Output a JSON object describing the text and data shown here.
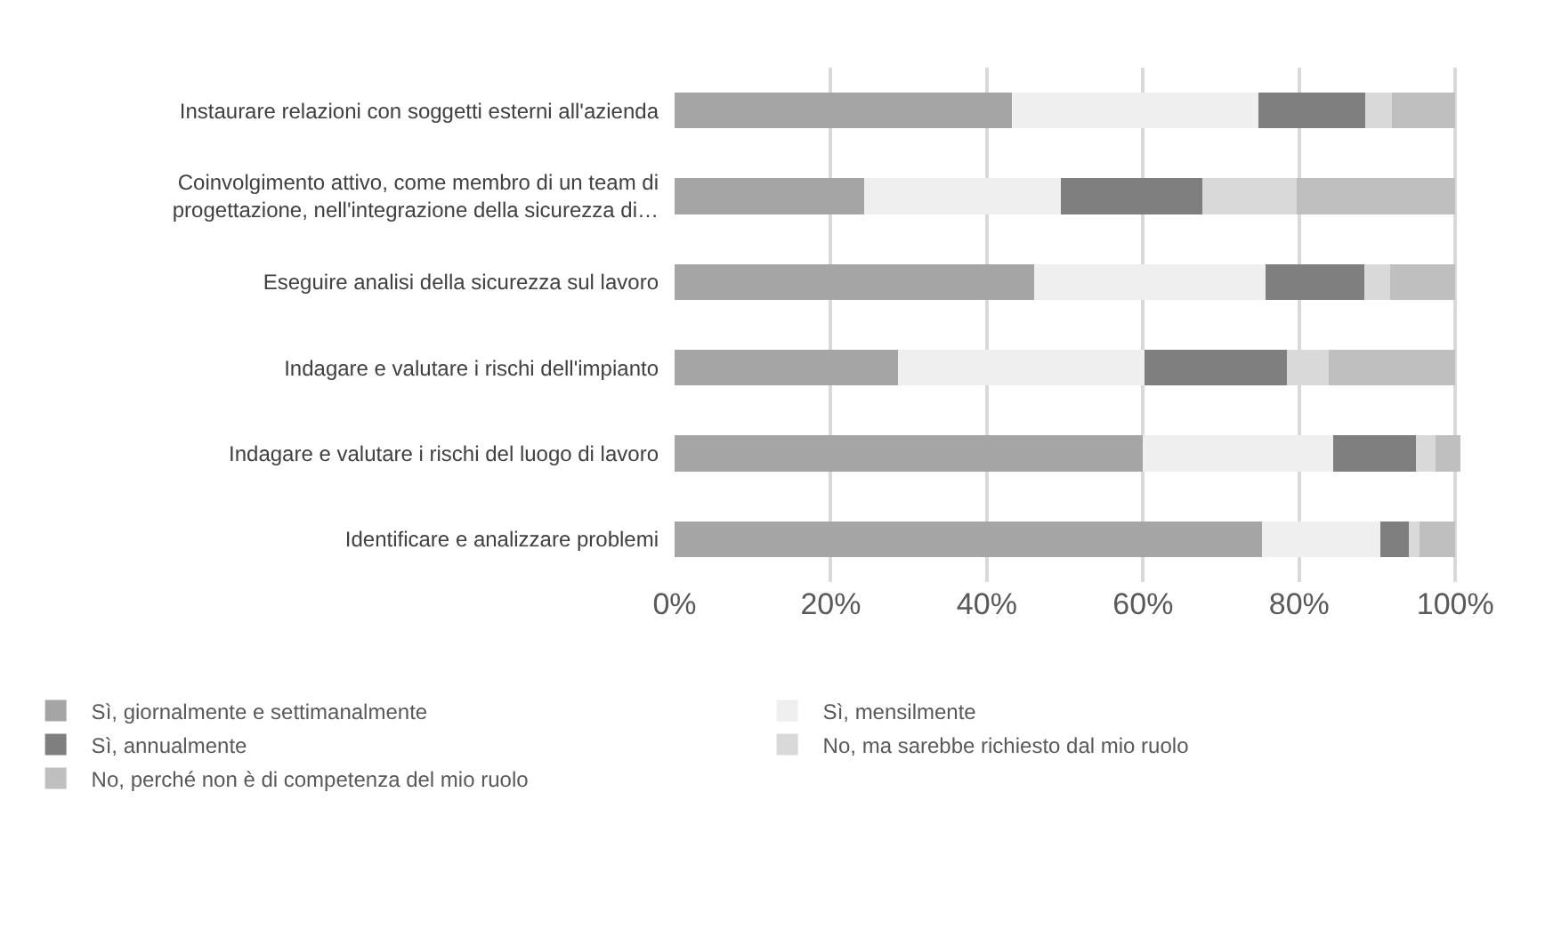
{
  "chart_data": {
    "type": "bar",
    "orientation": "horizontal",
    "stacked": true,
    "categories": [
      "Instaurare relazioni con soggetti esterni all'azienda",
      "Coinvolgimento attivo, come membro di un team di progettazione, nell'integrazione della sicurezza di…",
      "Eseguire analisi della sicurezza sul lavoro",
      "Indagare e valutare i rischi dell'impianto",
      "Indagare e valutare i rischi del luogo di lavoro",
      "Identificare e analizzare problemi"
    ],
    "series": [
      {
        "name": "Sì, giornalmente e settimanalmente",
        "color": "#a5a5a5",
        "values": [
          43.2,
          24.3,
          46.0,
          28.6,
          60.0,
          75.2
        ]
      },
      {
        "name": "Sì, mensilmente",
        "color": "#efefef",
        "values": [
          31.6,
          25.2,
          29.7,
          31.6,
          24.4,
          15.2
        ]
      },
      {
        "name": "Sì, annualmente",
        "color": "#7f7f7f",
        "values": [
          13.7,
          18.1,
          12.6,
          18.2,
          10.6,
          3.7
        ]
      },
      {
        "name": "No, ma sarebbe richiesto dal mio ruolo",
        "color": "#d9d9d9",
        "values": [
          3.4,
          12.1,
          3.3,
          5.4,
          2.5,
          1.3
        ]
      },
      {
        "name": "No, perché non è di competenza del mio ruolo",
        "color": "#bfbfbf",
        "values": [
          8.1,
          20.3,
          8.4,
          16.2,
          3.1,
          4.6
        ]
      }
    ],
    "xlim": [
      0,
      101
    ],
    "xticks": [
      {
        "value": 0,
        "label": "0%"
      },
      {
        "value": 20,
        "label": "20%"
      },
      {
        "value": 40,
        "label": "40%"
      },
      {
        "value": 60,
        "label": "60%"
      },
      {
        "value": 80,
        "label": "80%"
      },
      {
        "value": 100,
        "label": "100%"
      }
    ],
    "grid": "x",
    "legend": "bottom"
  }
}
